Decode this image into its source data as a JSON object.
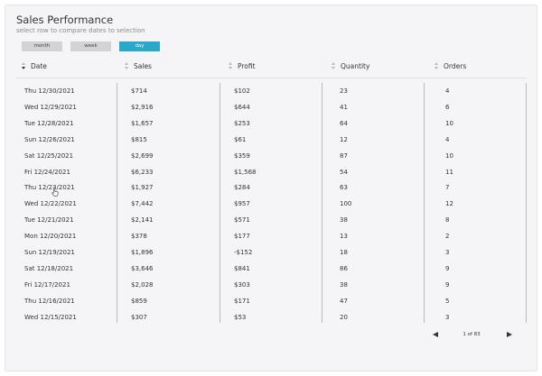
{
  "header": {
    "title": "Sales Performance",
    "subtitle": "select row to compare dates to selection"
  },
  "toggles": [
    {
      "label": "month",
      "active": false
    },
    {
      "label": "week",
      "active": false
    },
    {
      "label": "day",
      "active": true
    }
  ],
  "table": {
    "columns": [
      "Date",
      "Sales",
      "Profit",
      "Quantity",
      "Orders"
    ],
    "sorted_column": "Date",
    "rows": [
      [
        "Thu 12/30/2021",
        "$714",
        "$102",
        "23",
        "4"
      ],
      [
        "Wed 12/29/2021",
        "$2,916",
        "$644",
        "41",
        "6"
      ],
      [
        "Tue 12/28/2021",
        "$1,657",
        "$253",
        "64",
        "10"
      ],
      [
        "Sun 12/26/2021",
        "$815",
        "$61",
        "12",
        "4"
      ],
      [
        "Sat 12/25/2021",
        "$2,699",
        "$359",
        "87",
        "10"
      ],
      [
        "Fri 12/24/2021",
        "$6,233",
        "$1,568",
        "54",
        "11"
      ],
      [
        "Thu 12/23/2021",
        "$1,927",
        "$284",
        "63",
        "7"
      ],
      [
        "Wed 12/22/2021",
        "$7,442",
        "$957",
        "100",
        "12"
      ],
      [
        "Tue 12/21/2021",
        "$2,141",
        "$571",
        "38",
        "8"
      ],
      [
        "Mon 12/20/2021",
        "$378",
        "$177",
        "13",
        "2"
      ],
      [
        "Sun 12/19/2021",
        "$1,896",
        "-$152",
        "18",
        "3"
      ],
      [
        "Sat 12/18/2021",
        "$3,646",
        "$841",
        "86",
        "9"
      ],
      [
        "Fri 12/17/2021",
        "$2,028",
        "$303",
        "38",
        "9"
      ],
      [
        "Thu 12/16/2021",
        "$859",
        "$171",
        "47",
        "5"
      ],
      [
        "Wed 12/15/2021",
        "$307",
        "$53",
        "20",
        "3"
      ]
    ]
  },
  "pager": {
    "label": "1 of 83"
  },
  "colors": {
    "accent": "#2aa7c9",
    "toggle_inactive": "#d3d3d6",
    "background": "#f5f5f7"
  },
  "icons": {
    "prev": "triangle-left-icon",
    "next": "triangle-right-icon",
    "cursor": "hand-pointer-icon"
  }
}
